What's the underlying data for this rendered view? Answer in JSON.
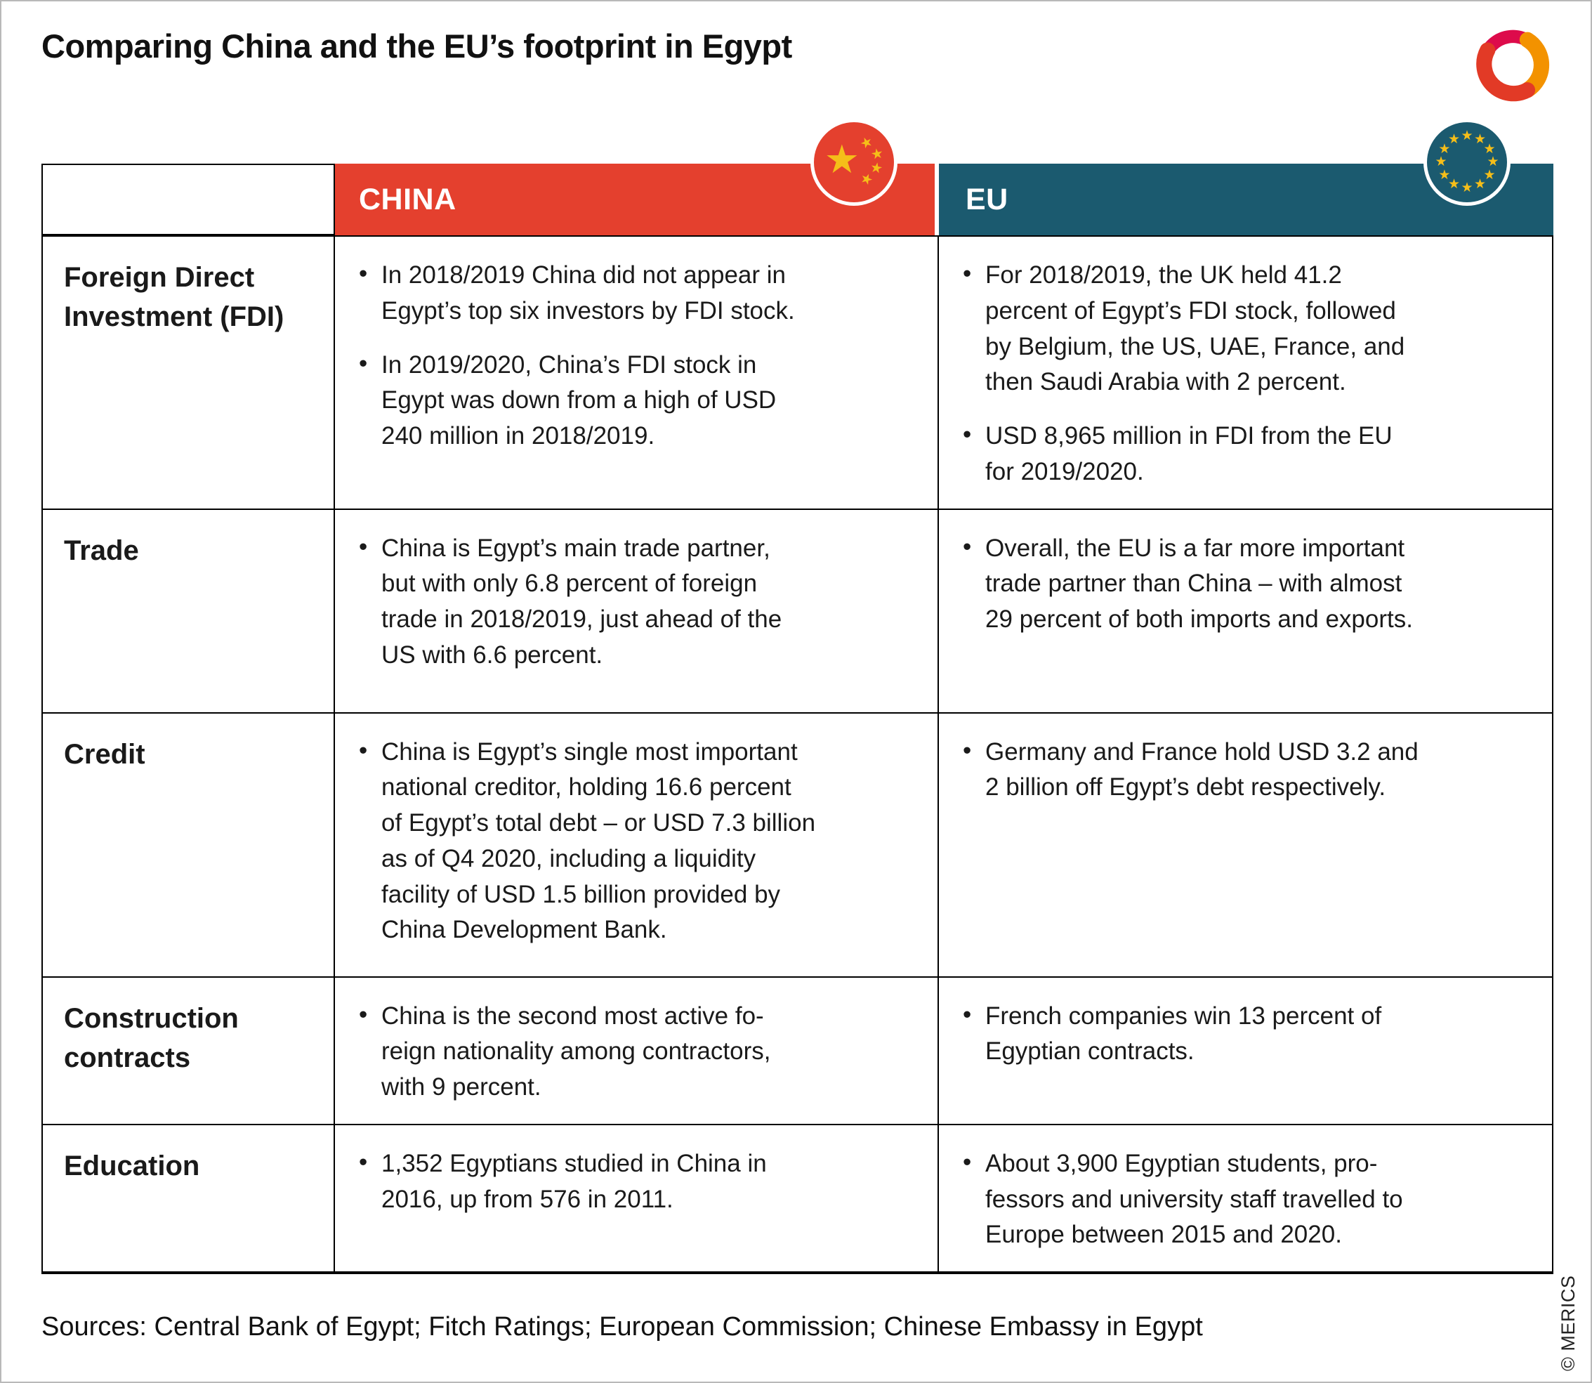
{
  "page": {
    "title": "Comparing China and the EU’s footprint in Egypt",
    "sources": "Sources: Central Bank of Egypt; Fitch Ratings; European Commission; Chinese Embassy in Egypt",
    "copyright": "© MERICS"
  },
  "colors": {
    "china_red": "#E4402E",
    "eu_teal": "#1B5A6F",
    "star_yellow": "#F5BE19"
  },
  "icons": {
    "logo": "merics-logo-icon",
    "china_flag": "china-flag-icon",
    "eu_flag": "eu-flag-icon",
    "star_glyph": "★",
    "bullet_glyph": "•"
  },
  "table": {
    "columns": [
      {
        "label": ""
      },
      {
        "label": "CHINA"
      },
      {
        "label": "EU"
      }
    ],
    "rows": [
      {
        "label": "Foreign Direct\nInvestment (FDI)",
        "china": [
          "In 2018/2019 China did not appear in\nEgypt’s top six investors by FDI stock.",
          "In 2019/2020, China’s FDI stock in\nEgypt was down from a high of USD\n240 million in 2018/2019."
        ],
        "eu": [
          "For 2018/2019, the UK held 41.2\npercent of Egypt’s FDI stock, followed\nby Belgium, the US, UAE, France, and\nthen Saudi Arabia with 2 percent.",
          "USD 8,965 million in FDI from the EU\nfor 2019/2020."
        ]
      },
      {
        "label": "Trade",
        "china": [
          "China is Egypt’s main trade partner,\nbut with only 6.8 percent of foreign\ntrade in 2018/2019, just ahead of the\nUS with 6.6 percent."
        ],
        "eu": [
          "Overall, the EU is a far more important\ntrade partner than China – with almost\n29 percent of both imports and exports."
        ]
      },
      {
        "label": "Credit",
        "china": [
          "China is Egypt’s single most important\nnational creditor, holding 16.6 percent\nof Egypt’s total debt – or USD 7.3 billion\nas of Q4 2020, including a liquidity\nfacility of USD 1.5 billion provided by\nChina Development Bank."
        ],
        "eu": [
          "Germany and France hold USD 3.2 and\n2 billion off Egypt’s debt respectively."
        ]
      },
      {
        "label": "Construction\ncontracts",
        "china": [
          "China is the second most active fo-\nreign nationality among contractors,\nwith 9 percent."
        ],
        "eu": [
          "French companies win 13 percent of\nEgyptian contracts."
        ]
      },
      {
        "label": "Education",
        "china": [
          "1,352 Egyptians studied in China in\n2016, up from 576 in 2011."
        ],
        "eu": [
          "About 3,900 Egyptian students, pro-\nfessors and university staff travelled to\nEurope between 2015 and 2020."
        ]
      }
    ]
  }
}
